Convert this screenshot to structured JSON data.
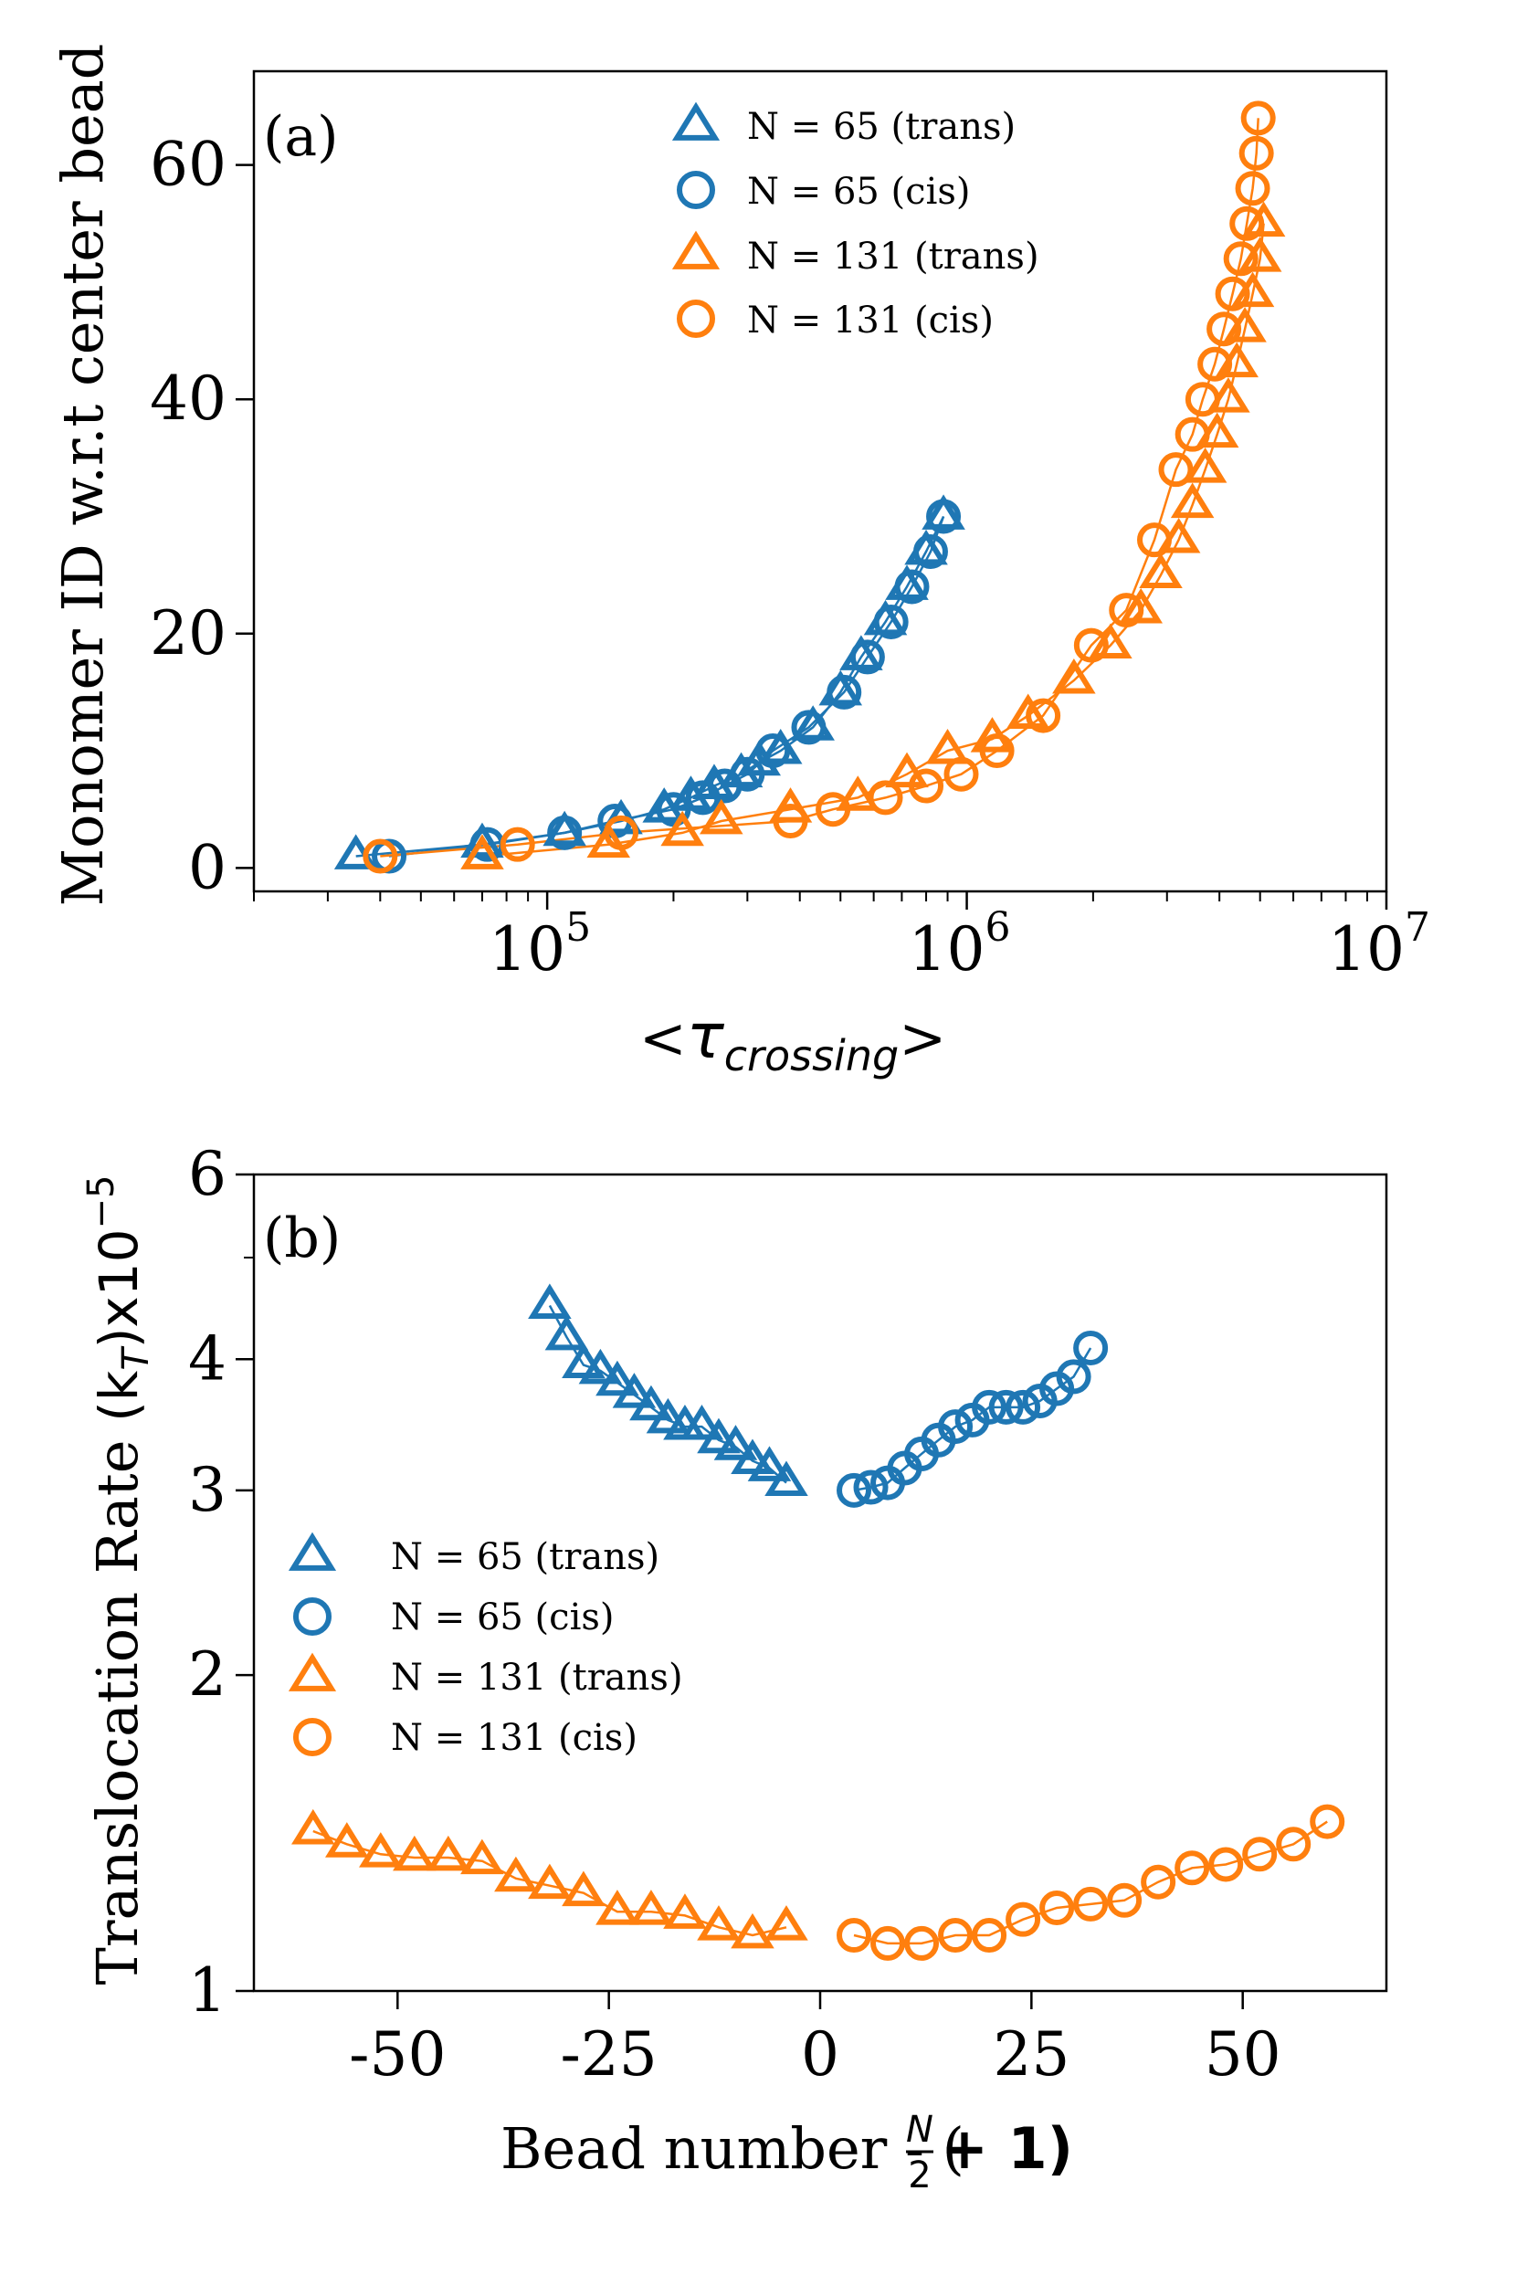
{
  "colors": {
    "blue": "#1f77b4",
    "orange": "#ff7f0e"
  },
  "chart_data": [
    {
      "type": "scatter",
      "panel_label": "(a)",
      "xscale": "log",
      "xlabel": "<τcrossing>",
      "xlabel_parts": {
        "left": "<",
        "tau": "τ",
        "sub": "crossing",
        "right": ">"
      },
      "ylabel": "Monomer ID w.r.t center bead",
      "xlim": [
        20000,
        10000000
      ],
      "ylim": [
        -2,
        68
      ],
      "xticks": [
        {
          "value": 100000,
          "base": "10",
          "exp": "5"
        },
        {
          "value": 1000000,
          "base": "10",
          "exp": "6"
        },
        {
          "value": 10000000,
          "base": "10",
          "exp": "7"
        }
      ],
      "yticks": [
        0,
        20,
        40,
        60
      ],
      "legend_position": "top-center",
      "series": [
        {
          "name": "N = 65 (trans)",
          "marker": "triangle",
          "color": "#1f77b4",
          "x": [
            35000,
            70000,
            110000,
            150000,
            190000,
            220000,
            250000,
            290000,
            320000,
            360000,
            430000,
            500000,
            560000,
            640000,
            720000,
            800000,
            880000
          ],
          "y": [
            1,
            2,
            3,
            4,
            5,
            6,
            7,
            8,
            9,
            10,
            12,
            15,
            18,
            21,
            24,
            27,
            30
          ]
        },
        {
          "name": "N = 65 (cis)",
          "marker": "circle",
          "color": "#1f77b4",
          "x": [
            42000,
            72000,
            110000,
            145000,
            200000,
            235000,
            265000,
            300000,
            345000,
            420000,
            510000,
            580000,
            660000,
            740000,
            820000,
            880000
          ],
          "y": [
            1,
            2,
            3,
            4,
            5,
            6,
            7,
            8,
            10,
            12,
            15,
            18,
            21,
            24,
            27,
            30
          ]
        },
        {
          "name": "N = 131 (trans)",
          "marker": "triangle",
          "color": "#ff7f0e",
          "x": [
            70000,
            140000,
            210000,
            260000,
            380000,
            550000,
            720000,
            900000,
            1150000,
            1400000,
            1800000,
            2200000,
            2600000,
            2900000,
            3200000,
            3450000,
            3700000,
            3950000,
            4200000,
            4400000,
            4600000,
            4800000,
            5000000,
            5100000
          ],
          "y": [
            1,
            2,
            3,
            4,
            5,
            6,
            8,
            10,
            11,
            13,
            16,
            19,
            22,
            25,
            28,
            31,
            34,
            37,
            40,
            43,
            46,
            49,
            52,
            55
          ]
        },
        {
          "name": "N = 131 (cis)",
          "marker": "circle",
          "color": "#ff7f0e",
          "x": [
            40000,
            85000,
            150000,
            380000,
            480000,
            640000,
            800000,
            970000,
            1180000,
            1520000,
            1980000,
            2400000,
            2800000,
            3150000,
            3450000,
            3650000,
            3900000,
            4100000,
            4300000,
            4500000,
            4650000,
            4800000,
            4900000,
            4950000
          ],
          "y": [
            1,
            2,
            3,
            4,
            5,
            6,
            7,
            8,
            10,
            13,
            19,
            22,
            28,
            34,
            37,
            40,
            43,
            46,
            49,
            52,
            55,
            58,
            61,
            64
          ]
        }
      ]
    },
    {
      "type": "scatter",
      "panel_label": "(b)",
      "yscale": "log",
      "xlabel": "Bead number - (N/2 + 1)",
      "xlabel_parts": {
        "prefix": "Bead number - (",
        "num": "N",
        "den": "2",
        "suffix": " + 1)"
      },
      "ylabel": "Translocation Rate (kT)x10−5",
      "ylabel_parts": {
        "prefix": "Translocation Rate ",
        "k": "(k",
        "sub": "T",
        "close": ")x10",
        "exp": "−5"
      },
      "xlim": [
        -67,
        67
      ],
      "ylim": [
        1,
        6
      ],
      "xticks": [
        -50,
        -25,
        0,
        25,
        50
      ],
      "yticks": [
        1,
        2,
        3,
        4,
        6
      ],
      "legend_position": "center-left",
      "series": [
        {
          "name": "N = 65 (trans)",
          "marker": "triangle",
          "color": "#1f77b4",
          "x": [
            -32,
            -30,
            -28,
            -26,
            -24,
            -22,
            -20,
            -18,
            -16,
            -14,
            -12,
            -10,
            -8,
            -6,
            -4
          ],
          "y": [
            4.5,
            4.2,
            3.95,
            3.9,
            3.8,
            3.7,
            3.6,
            3.5,
            3.45,
            3.45,
            3.35,
            3.3,
            3.2,
            3.15,
            3.05
          ]
        },
        {
          "name": "N = 65 (cis)",
          "marker": "circle",
          "color": "#1f77b4",
          "x": [
            4,
            6,
            8,
            10,
            12,
            14,
            16,
            18,
            20,
            22,
            24,
            26,
            28,
            30,
            32
          ],
          "y": [
            3.0,
            3.02,
            3.05,
            3.15,
            3.25,
            3.35,
            3.45,
            3.5,
            3.6,
            3.6,
            3.6,
            3.65,
            3.75,
            3.85,
            4.1
          ]
        },
        {
          "name": "N = 131 (trans)",
          "marker": "triangle",
          "color": "#ff7f0e",
          "x": [
            -60,
            -56,
            -52,
            -48,
            -44,
            -40,
            -36,
            -32,
            -28,
            -24,
            -20,
            -16,
            -12,
            -8,
            -4
          ],
          "y": [
            1.42,
            1.38,
            1.35,
            1.34,
            1.34,
            1.33,
            1.28,
            1.26,
            1.24,
            1.19,
            1.19,
            1.18,
            1.15,
            1.13,
            1.15
          ]
        },
        {
          "name": "N = 131 (cis)",
          "marker": "circle",
          "color": "#ff7f0e",
          "x": [
            4,
            8,
            12,
            16,
            20,
            24,
            28,
            32,
            36,
            40,
            44,
            48,
            52,
            56,
            60
          ],
          "y": [
            1.13,
            1.11,
            1.11,
            1.13,
            1.13,
            1.17,
            1.2,
            1.21,
            1.22,
            1.27,
            1.31,
            1.32,
            1.35,
            1.38,
            1.45
          ]
        }
      ]
    }
  ]
}
